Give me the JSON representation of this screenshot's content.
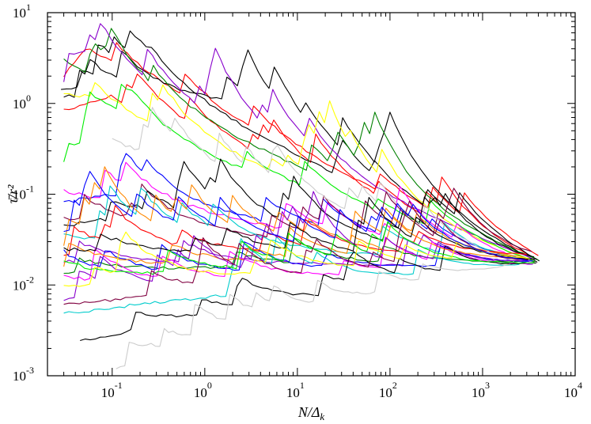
{
  "chart_data": {
    "type": "line",
    "title": "",
    "xlabel": "N/Δ_k",
    "ylabel": "τ̄/r²",
    "xscale": "log",
    "yscale": "log",
    "xlim": [
      0.02,
      10000
    ],
    "ylim": [
      0.001,
      10
    ],
    "grid": false,
    "legend": "none",
    "x_ticks": [
      {
        "base": "10",
        "exp": "-1",
        "value": 0.1
      },
      {
        "base": "10",
        "exp": "0",
        "value": 1
      },
      {
        "base": "10",
        "exp": "1",
        "value": 10
      },
      {
        "base": "10",
        "exp": "2",
        "value": 100
      },
      {
        "base": "10",
        "exp": "3",
        "value": 1000
      },
      {
        "base": "10",
        "exp": "4",
        "value": 10000
      }
    ],
    "y_ticks": [
      {
        "base": "10",
        "exp": "-3",
        "value": 0.001
      },
      {
        "base": "10",
        "exp": "-2",
        "value": 0.01
      },
      {
        "base": "10",
        "exp": "-1",
        "value": 0.1
      },
      {
        "base": "10",
        "exp": "0",
        "value": 1
      },
      {
        "base": "10",
        "exp": "1",
        "value": 10
      }
    ],
    "convergence": {
      "x": 4000,
      "y": 0.017
    },
    "series": [
      {
        "color": "#ff0000",
        "start_x": 0.03,
        "start_y": 2.0,
        "peak_x": 0.055,
        "peak_y": 4.2,
        "end_x": 4000,
        "end_y": 0.018
      },
      {
        "color": "#ff0000",
        "start_x": 0.03,
        "start_y": 0.85,
        "peak_x": 0.1,
        "peak_y": 1.2,
        "end_x": 3800,
        "end_y": 0.017
      },
      {
        "color": "#000000",
        "start_x": 0.028,
        "start_y": 1.4,
        "peak_x": 0.28,
        "peak_y": 1.9,
        "end_x": 4100,
        "end_y": 0.016
      },
      {
        "color": "#000000",
        "start_x": 0.03,
        "start_y": 1.2,
        "peak_x": 2.0,
        "peak_y": 1.0,
        "end_x": 3900,
        "end_y": 0.017
      },
      {
        "color": "#008000",
        "start_x": 0.03,
        "start_y": 3.0,
        "peak_x": 0.03,
        "peak_y": 3.0,
        "end_x": 4000,
        "end_y": 0.018
      },
      {
        "color": "#8800cc",
        "start_x": 0.03,
        "start_y": 1.7,
        "peak_x": 0.06,
        "peak_y": 2.7,
        "end_x": 3600,
        "end_y": 0.019
      },
      {
        "color": "#ffff00",
        "start_x": 0.03,
        "start_y": 0.95,
        "peak_x": 0.06,
        "peak_y": 1.0,
        "end_x": 3500,
        "end_y": 0.018
      },
      {
        "color": "#00ee00",
        "start_x": 0.03,
        "start_y": 0.22,
        "peak_x": 0.18,
        "peak_y": 0.5,
        "end_x": 3700,
        "end_y": 0.017
      },
      {
        "color": "#ff00ff",
        "start_x": 0.03,
        "start_y": 0.11,
        "peak_x": 0.03,
        "peak_y": 0.11,
        "end_x": 3200,
        "end_y": 0.016
      },
      {
        "color": "#0000ff",
        "start_x": 0.03,
        "start_y": 0.08,
        "peak_x": 0.08,
        "peak_y": 0.1,
        "end_x": 3300,
        "end_y": 0.017
      },
      {
        "color": "#800040",
        "start_x": 0.03,
        "start_y": 0.055,
        "peak_x": 0.03,
        "peak_y": 0.055,
        "end_x": 3400,
        "end_y": 0.018
      },
      {
        "color": "#000000",
        "start_x": 0.03,
        "start_y": 0.045,
        "peak_x": 0.2,
        "peak_y": 0.06,
        "end_x": 3600,
        "end_y": 0.017
      },
      {
        "color": "#00cccc",
        "start_x": 0.03,
        "start_y": 0.035,
        "peak_x": 0.03,
        "peak_y": 0.035,
        "end_x": 3000,
        "end_y": 0.017
      },
      {
        "color": "#ff8800",
        "start_x": 0.03,
        "start_y": 0.028,
        "peak_x": 0.05,
        "peak_y": 0.03,
        "end_x": 2800,
        "end_y": 0.019
      },
      {
        "color": "#ff0000",
        "start_x": 0.03,
        "start_y": 0.022,
        "peak_x": 0.03,
        "peak_y": 0.022,
        "end_x": 3000,
        "end_y": 0.021
      },
      {
        "color": "#8800cc",
        "start_x": 0.03,
        "start_y": 0.018,
        "peak_x": 0.03,
        "peak_y": 0.018,
        "end_x": 3500,
        "end_y": 0.016
      },
      {
        "color": "#008000",
        "start_x": 0.03,
        "start_y": 0.014,
        "peak_x": 0.03,
        "peak_y": 0.014,
        "end_x": 3700,
        "end_y": 0.018
      },
      {
        "color": "#0000ff",
        "start_x": 0.03,
        "start_y": 0.011,
        "peak_x": 0.03,
        "peak_y": 0.011,
        "end_x": 3100,
        "end_y": 0.017
      },
      {
        "color": "#ff00ff",
        "start_x": 0.03,
        "start_y": 0.0085,
        "peak_x": 0.03,
        "peak_y": 0.0085,
        "end_x": 3300,
        "end_y": 0.016
      },
      {
        "color": "#00cccc",
        "start_x": 0.03,
        "start_y": 0.0048,
        "peak_x": 0.03,
        "peak_y": 0.0048,
        "end_x": 2500,
        "end_y": 0.016
      },
      {
        "color": "#000000",
        "start_x": 0.045,
        "start_y": 0.0024,
        "peak_x": 0.045,
        "peak_y": 0.0024,
        "end_x": 3800,
        "end_y": 0.016
      },
      {
        "color": "#cccccc",
        "start_x": 0.11,
        "start_y": 0.0012,
        "peak_x": 0.11,
        "peak_y": 0.0012,
        "end_x": 2000,
        "end_y": 0.016
      },
      {
        "color": "#cccccc",
        "start_x": 0.1,
        "start_y": 0.4,
        "peak_x": 0.1,
        "peak_y": 0.4,
        "end_x": 2200,
        "end_y": 0.017
      },
      {
        "color": "#ff8800",
        "start_x": 0.03,
        "start_y": 0.016,
        "peak_x": 0.03,
        "peak_y": 0.016,
        "end_x": 3000,
        "end_y": 0.019
      },
      {
        "color": "#8800cc",
        "start_x": 0.03,
        "start_y": 0.007,
        "peak_x": 0.03,
        "peak_y": 0.007,
        "end_x": 3400,
        "end_y": 0.017
      },
      {
        "color": "#000000",
        "start_x": 0.03,
        "start_y": 0.025,
        "peak_x": 0.03,
        "peak_y": 0.025,
        "end_x": 3900,
        "end_y": 0.018
      },
      {
        "color": "#00ee00",
        "start_x": 0.03,
        "start_y": 0.012,
        "peak_x": 0.03,
        "peak_y": 0.012,
        "end_x": 3600,
        "end_y": 0.017
      },
      {
        "color": "#ffff00",
        "start_x": 0.03,
        "start_y": 0.0095,
        "peak_x": 0.03,
        "peak_y": 0.0095,
        "end_x": 3200,
        "end_y": 0.018
      },
      {
        "color": "#800040",
        "start_x": 0.03,
        "start_y": 0.006,
        "peak_x": 0.03,
        "peak_y": 0.006,
        "end_x": 3100,
        "end_y": 0.016
      },
      {
        "color": "#0000ff",
        "start_x": 0.03,
        "start_y": 0.04,
        "peak_x": 0.03,
        "peak_y": 0.04,
        "end_x": 3500,
        "end_y": 0.017
      }
    ]
  }
}
